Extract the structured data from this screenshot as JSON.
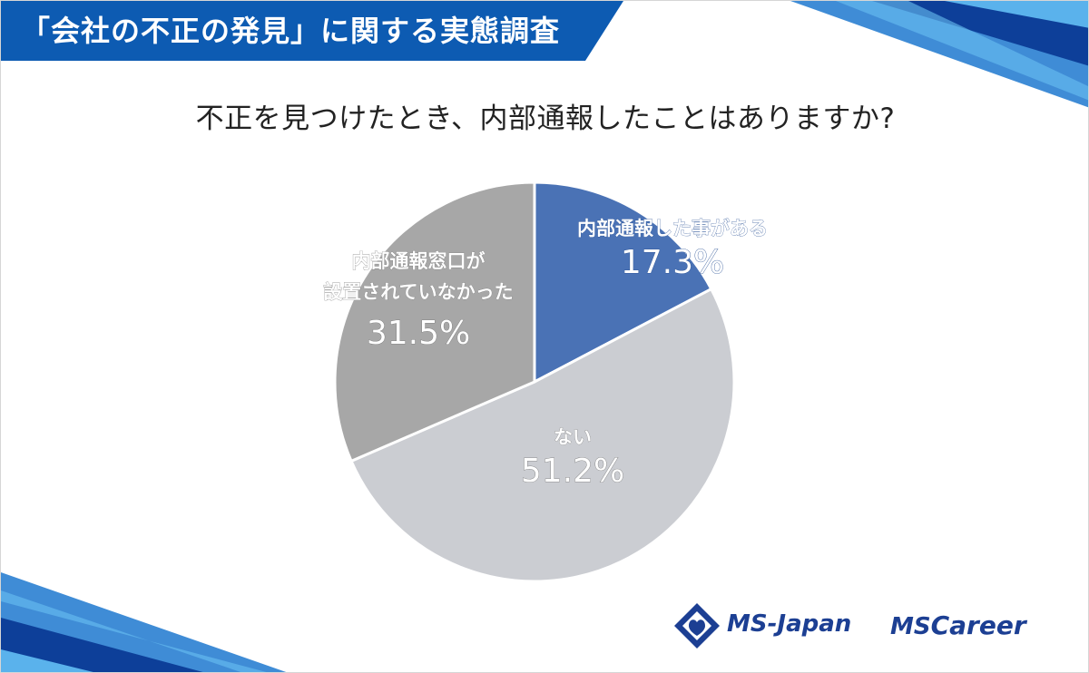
{
  "header": {
    "title": "「会社の不正の発見」に関する実態調査",
    "color": "#0d5bb2"
  },
  "question": "不正を見つけたとき、内部通報したことはありますか?",
  "chart_data": {
    "type": "pie",
    "title": "不正を見つけたとき、内部通報したことはありますか?",
    "slices": [
      {
        "label_lines": [
          "内部通報した事がある"
        ],
        "value": 17.3,
        "value_label": "17.3%",
        "color": "#4a72b5"
      },
      {
        "label_lines": [
          "ない"
        ],
        "value": 51.2,
        "value_label": "51.2%",
        "color": "#cbcdd2"
      },
      {
        "label_lines": [
          "内部通報窓口が",
          "設置されていなかった"
        ],
        "value": 31.5,
        "value_label": "31.5%",
        "color": "#a7a7a7"
      }
    ],
    "start": "top",
    "direction": "clockwise"
  },
  "logos": {
    "ms_japan": "MS-Japan",
    "ms_career_ms": "MS",
    "ms_career_rest": "Career",
    "brand_color": "#1c3f93"
  }
}
